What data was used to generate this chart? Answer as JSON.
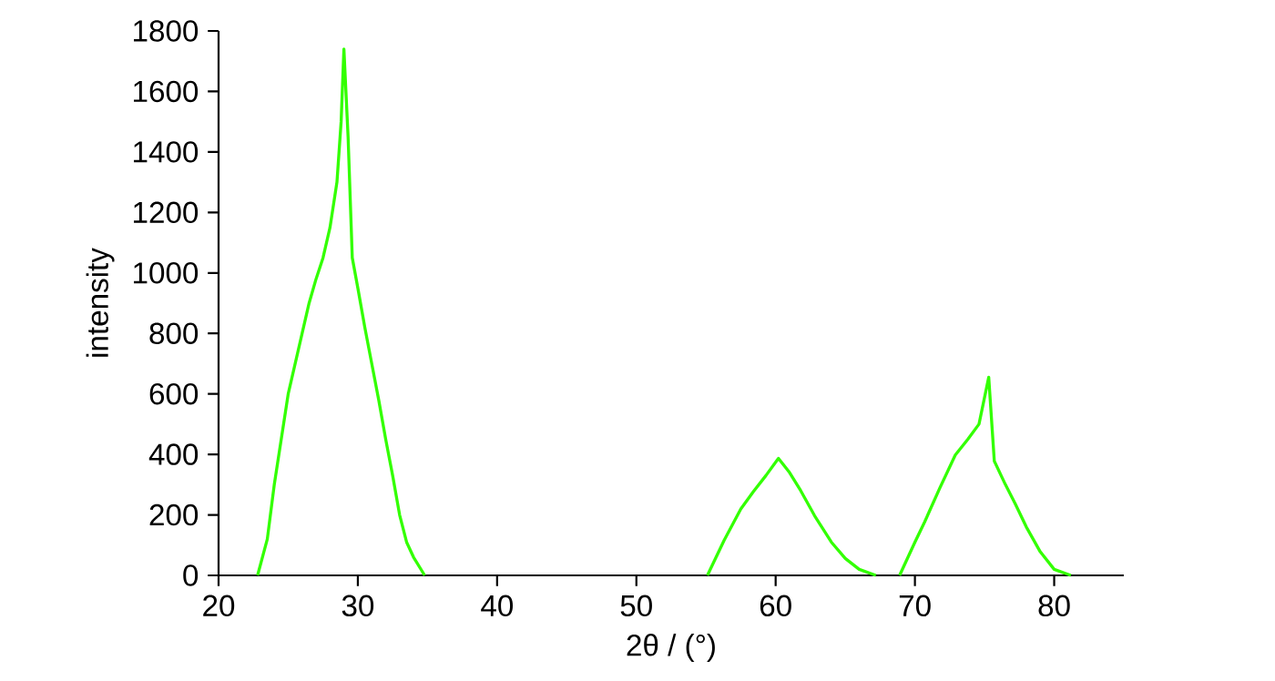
{
  "chart_data": {
    "type": "line",
    "xlabel": "2θ / (°)",
    "ylabel": "intensity",
    "series": [
      {
        "color": "#33ff00",
        "x": [
          22.8,
          23.5,
          24.0,
          24.5,
          25.0,
          25.5,
          26.0,
          26.5,
          27.0,
          27.5,
          28.0,
          28.5,
          28.8,
          29.0,
          29.3,
          29.6,
          30.0,
          30.5,
          31.0,
          31.5,
          32.0,
          32.5,
          33.0,
          33.5,
          34.0,
          34.8,
          null,
          55.1,
          56.3,
          57.5,
          58.4,
          59.3,
          60.2,
          61.0,
          61.8,
          62.8,
          64.0,
          65.0,
          66.0,
          67.2,
          null,
          68.9,
          70.0,
          70.7,
          71.8,
          72.9,
          73.8,
          74.6,
          75.3,
          75.7,
          76.5,
          77.2,
          78.0,
          79.0,
          80.0,
          81.2
        ],
        "values": [
          0,
          120,
          300,
          450,
          600,
          700,
          800,
          900,
          980,
          1050,
          1150,
          1300,
          1500,
          1740,
          1450,
          1050,
          950,
          820,
          700,
          580,
          450,
          330,
          200,
          110,
          60,
          0,
          null,
          0,
          116,
          220,
          277,
          330,
          387,
          340,
          280,
          197,
          110,
          56,
          20,
          0,
          null,
          0,
          110,
          177,
          290,
          398,
          450,
          500,
          655,
          378,
          300,
          237,
          160,
          78,
          20,
          0
        ]
      }
    ],
    "xlim": [
      20,
      85
    ],
    "ylim": [
      0,
      1800
    ],
    "xticks": [
      20,
      30,
      40,
      50,
      60,
      70,
      80
    ],
    "yticks": [
      0,
      200,
      400,
      600,
      800,
      1000,
      1200,
      1400,
      1600,
      1800
    ],
    "grid": false,
    "marker": "none",
    "line_style": "solid"
  }
}
